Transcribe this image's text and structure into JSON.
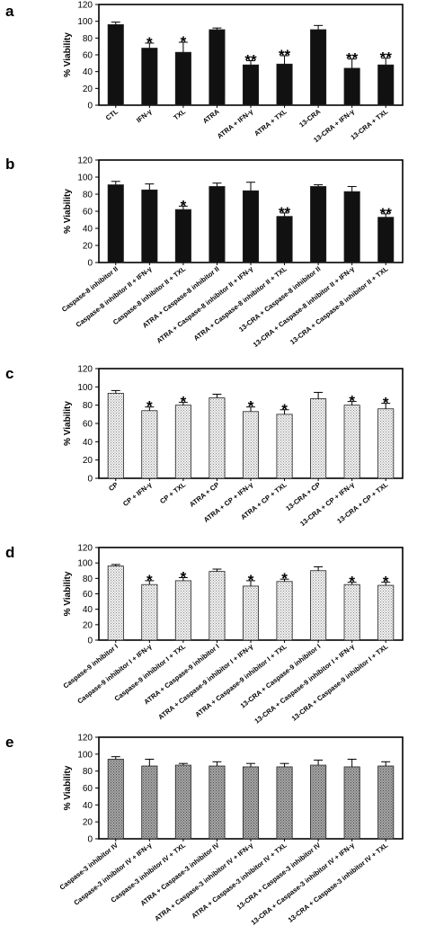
{
  "chart_data": [
    {
      "panel": "a",
      "type": "bar",
      "ylabel": "% Viability",
      "ylim": [
        0,
        120
      ],
      "yticks": [
        0,
        20,
        40,
        60,
        80,
        100,
        120
      ],
      "categories": [
        "CTL",
        "IFN-γ",
        "TXL",
        "ATRA",
        "ATRA + IFN-γ",
        "ATRA + TXL",
        "13-CRA",
        "13-CRA + IFN-γ",
        "13-CRA + TXL"
      ],
      "values": [
        96,
        68,
        63,
        90,
        48,
        49,
        90,
        44,
        48
      ],
      "errors": [
        3,
        6,
        12,
        2,
        5,
        10,
        5,
        11,
        8
      ],
      "significance": [
        "",
        "*",
        "*",
        "",
        "**",
        "**",
        "",
        "**",
        "**"
      ],
      "bar_color": "#111111",
      "bar_style": "solid",
      "grid": false
    },
    {
      "panel": "b",
      "type": "bar",
      "ylabel": "% Viability",
      "ylim": [
        0,
        120
      ],
      "yticks": [
        0,
        20,
        40,
        60,
        80,
        100,
        120
      ],
      "categories": [
        "Caspase-8 inhibitor II",
        "Caspase-8 inhibitor II + IFN-γ",
        "Caspase-8 inhibitor II + TXL",
        "ATRA + Caspase-8 inhibitor II",
        "ATRA + Caspase-8 inhibitor II + IFN-γ",
        "ATRA + Caspase-8 inhibitor II + TXL",
        "13-CRA + Caspase-8 inhibitor II",
        "13-CRA + Caspase-8 inhibitor II + IFN-γ",
        "13-CRA + Caspase-8 inhibitor II + TXL"
      ],
      "values": [
        91,
        85,
        62,
        89,
        84,
        54,
        89,
        83,
        53
      ],
      "errors": [
        4,
        7,
        4,
        4,
        10,
        4,
        2,
        6,
        4
      ],
      "significance": [
        "",
        "",
        "*",
        "",
        "",
        "**",
        "",
        "",
        "**"
      ],
      "bar_color": "#111111",
      "bar_style": "solid",
      "grid": false
    },
    {
      "panel": "c",
      "type": "bar",
      "ylabel": "% Viability",
      "ylim": [
        0,
        120
      ],
      "yticks": [
        0,
        20,
        40,
        60,
        80,
        100,
        120
      ],
      "categories": [
        "CP",
        "CP + IFN-γ",
        "CP + TXL",
        "ATRA + CP",
        "ATRA + CP + IFN-γ",
        "ATRA + CP + TXL",
        "13-CRA + CP",
        "13-CRA + CP + IFN-γ",
        "13-CRA + CP + TXL"
      ],
      "values": [
        93,
        74,
        80,
        88,
        73,
        70,
        87,
        80,
        76
      ],
      "errors": [
        3,
        4,
        3,
        4,
        5,
        5,
        7,
        4,
        6
      ],
      "significance": [
        "",
        "*",
        "*",
        "",
        "*",
        "*",
        "",
        "*",
        "*"
      ],
      "bar_color": "#e2e2e2",
      "bar_style": "dotted",
      "grid": false
    },
    {
      "panel": "d",
      "type": "bar",
      "ylabel": "% Viability",
      "ylim": [
        0,
        120
      ],
      "yticks": [
        0,
        20,
        40,
        60,
        80,
        100,
        120
      ],
      "categories": [
        "Caspase-9 inhibitor I",
        "Caspase-9 inhibitor I + IFN-γ",
        "Caspase-9 inhibitor I + TXL",
        "ATRA + Caspase-9 inhibitor I",
        "ATRA + Caspase-9 inhibitor I + IFN-γ",
        "ATRA + Caspase-9 inhibitor I + TXL",
        "13-CRA + Caspase-9 inhibitor I",
        "13-CRA + Caspase-9 inhibitor I + IFN-γ",
        "13-CRA + Caspase-9 inhibitor I + TXL"
      ],
      "values": [
        96,
        72,
        77,
        89,
        70,
        76,
        90,
        72,
        71
      ],
      "errors": [
        2,
        5,
        4,
        3,
        7,
        3,
        5,
        3,
        4
      ],
      "significance": [
        "",
        "*",
        "*",
        "",
        "*",
        "*",
        "",
        "*",
        "*"
      ],
      "bar_color": "#e6e6e6",
      "bar_style": "dotted",
      "grid": false
    },
    {
      "panel": "e",
      "type": "bar",
      "ylabel": "% Viability",
      "ylim": [
        0,
        120
      ],
      "yticks": [
        0,
        20,
        40,
        60,
        80,
        100,
        120
      ],
      "categories": [
        "Caspase-3 inhibitor IV",
        "Caspase-3 inhibitor IV + IFN-γ",
        "Caspase-3 inhibitor IV + TXL",
        "ATRA + Caspase-3 inhibitor IV",
        "ATRA + Caspase-3 inhibitor IV + IFN-γ",
        "ATRA + Caspase-3 inhibitor IV + TXL",
        "13-CRA + Caspase-3 inhibitor IV",
        "13-CRA + Caspase-3 inhibitor IV + IFN-γ",
        "13-CRA + Caspase-3 inhibitor IV + TXL"
      ],
      "values": [
        94,
        86,
        87,
        86,
        85,
        85,
        87,
        85,
        86
      ],
      "errors": [
        3,
        8,
        2,
        5,
        4,
        4,
        6,
        9,
        5
      ],
      "significance": [
        "",
        "",
        "",
        "",
        "",
        "",
        "",
        "",
        ""
      ],
      "bar_color": "#9a9a9a",
      "bar_style": "dotted",
      "grid": false
    }
  ]
}
